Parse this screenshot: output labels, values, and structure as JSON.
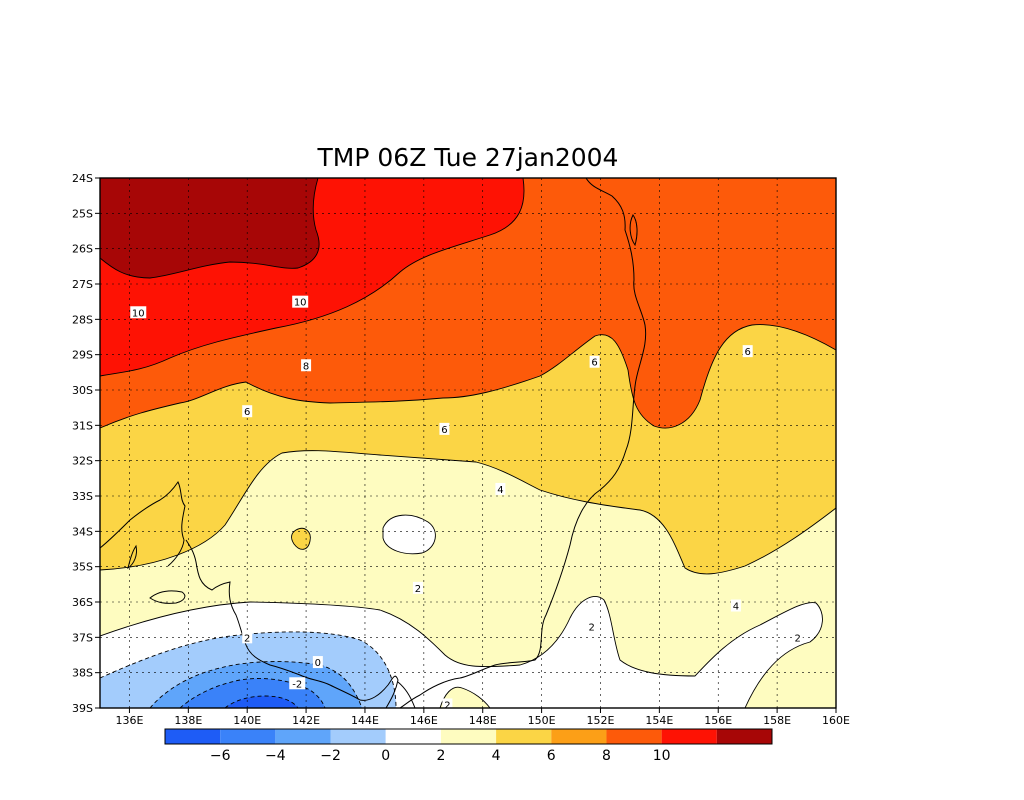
{
  "map": {
    "title": "TMP 06Z Tue 27jan2004",
    "variable": "TMP",
    "lat_ticks": [
      "24S",
      "25S",
      "26S",
      "27S",
      "28S",
      "29S",
      "30S",
      "31S",
      "32S",
      "33S",
      "34S",
      "35S",
      "36S",
      "37S",
      "38S",
      "39S"
    ],
    "lon_ticks": [
      "136E",
      "138E",
      "140E",
      "142E",
      "144E",
      "146E",
      "148E",
      "150E",
      "152E",
      "154E",
      "156E",
      "158E",
      "160E"
    ],
    "contour_labels": [
      {
        "text": "10",
        "lon": 136.3,
        "lat": -27.8
      },
      {
        "text": "10",
        "lon": 141.8,
        "lat": -27.5
      },
      {
        "text": "8",
        "lon": 142.0,
        "lat": -29.3
      },
      {
        "text": "6",
        "lon": 140.0,
        "lat": -30.6
      },
      {
        "text": "6",
        "lon": 146.7,
        "lat": -31.1
      },
      {
        "text": "6",
        "lon": 151.8,
        "lat": -29.2
      },
      {
        "text": "6",
        "lon": 157.0,
        "lat": -28.9
      },
      {
        "text": "4",
        "lon": 148.6,
        "lat": -32.8
      },
      {
        "text": "4",
        "lon": 156.6,
        "lat": -36.1
      },
      {
        "text": "2",
        "lon": 145.8,
        "lat": -35.6
      },
      {
        "text": "2",
        "lon": 140.0,
        "lat": -37.0
      },
      {
        "text": "2",
        "lon": 151.7,
        "lat": -36.7
      },
      {
        "text": "2",
        "lon": 158.7,
        "lat": -37.0
      },
      {
        "text": "2",
        "lon": 146.8,
        "lat": -38.9
      },
      {
        "text": "0",
        "lon": 142.4,
        "lat": -37.7
      },
      {
        "text": "-2",
        "lon": 141.7,
        "lat": -38.3
      }
    ],
    "colorbar": {
      "labels": [
        "-6",
        "-4",
        "-2",
        "0",
        "2",
        "4",
        "6",
        "8",
        "10"
      ],
      "colors": [
        "#1e5cf6",
        "#3a82f9",
        "#5fa5fa",
        "#a3ccfc",
        "#ffffff",
        "#fefcc0",
        "#fbd545",
        "#fc9f17",
        "#fd5a0a",
        "#fe1204",
        "#a70606"
      ]
    }
  }
}
